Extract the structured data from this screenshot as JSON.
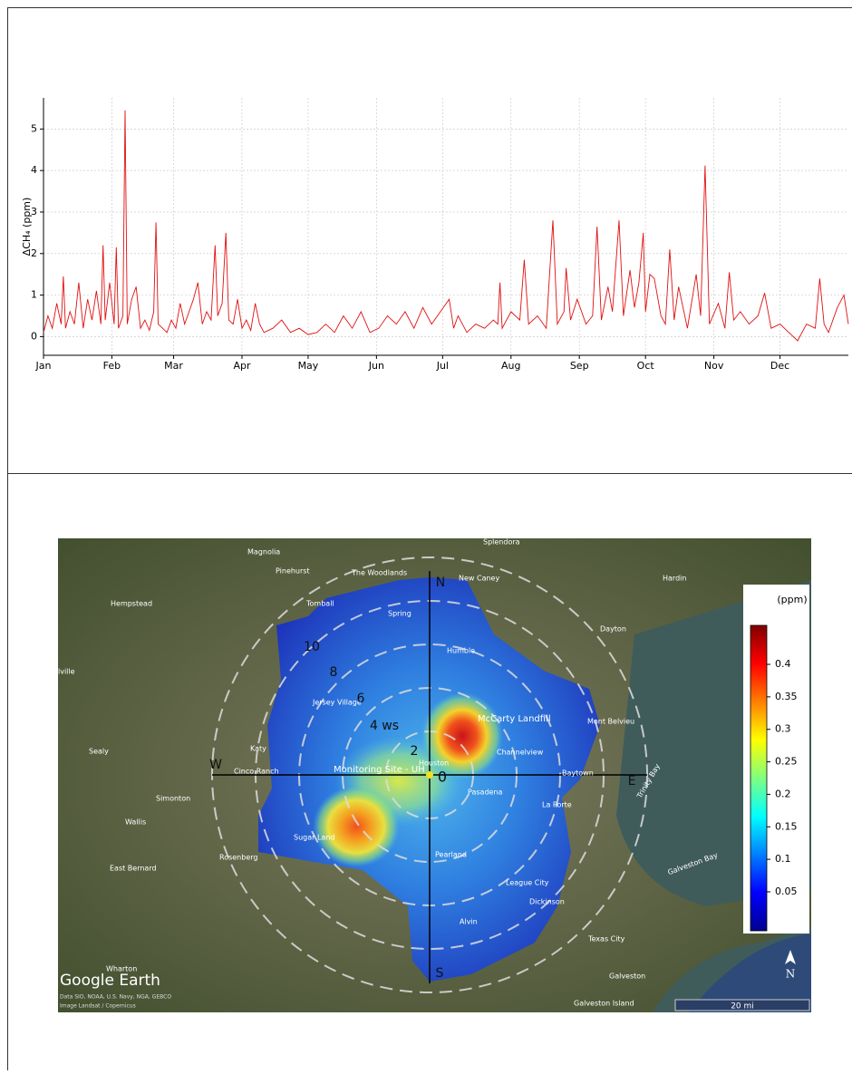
{
  "chart_data": {
    "type": "line",
    "ylabel": "ΔCH₄ (ppm)",
    "color": "#e01010",
    "grid": true,
    "xlim": [
      0,
      365
    ],
    "ylim": [
      -0.45,
      5.75
    ],
    "xticks": [
      {
        "value": 0,
        "label": "Jan"
      },
      {
        "value": 31,
        "label": "Feb"
      },
      {
        "value": 59,
        "label": "Mar"
      },
      {
        "value": 90,
        "label": "Apr"
      },
      {
        "value": 120,
        "label": "May"
      },
      {
        "value": 151,
        "label": "Jun"
      },
      {
        "value": 181,
        "label": "Jul"
      },
      {
        "value": 212,
        "label": "Aug"
      },
      {
        "value": 243,
        "label": "Sep"
      },
      {
        "value": 273,
        "label": "Oct"
      },
      {
        "value": 304,
        "label": "Nov"
      },
      {
        "value": 334,
        "label": "Dec"
      }
    ],
    "yticks": [
      0,
      1,
      2,
      3,
      4,
      5
    ],
    "x": [
      0,
      2,
      4,
      6,
      8,
      9,
      10,
      12,
      14,
      16,
      18,
      20,
      22,
      24,
      26,
      27,
      28,
      30,
      32,
      33,
      34,
      36,
      37,
      38,
      40,
      42,
      44,
      46,
      48,
      50,
      51,
      52,
      54,
      56,
      58,
      60,
      62,
      64,
      66,
      68,
      70,
      72,
      74,
      76,
      77.8,
      79,
      81,
      82.7,
      84,
      86,
      88,
      90,
      92,
      94,
      96,
      98,
      100,
      104,
      108,
      112,
      116,
      120,
      124,
      128,
      132,
      136,
      140,
      144,
      148,
      152,
      156,
      160,
      164,
      168,
      172,
      176,
      180,
      184,
      186,
      188,
      192,
      196,
      200,
      204,
      206,
      207,
      208,
      212,
      216,
      218,
      220,
      224,
      228,
      231,
      233,
      236,
      237,
      239,
      242,
      246,
      249,
      251,
      253,
      256,
      258,
      261,
      263,
      266,
      268,
      270,
      272,
      273,
      275,
      277,
      280,
      282,
      284,
      286,
      288,
      292,
      296,
      298,
      300,
      302,
      306,
      309,
      311,
      313,
      316,
      320,
      324,
      327,
      330,
      334,
      338,
      342,
      346,
      350,
      352,
      354,
      356,
      360,
      363,
      365
    ],
    "values": [
      0.1,
      0.5,
      0.2,
      0.8,
      0.3,
      1.45,
      0.2,
      0.6,
      0.3,
      1.3,
      0.2,
      0.9,
      0.4,
      1.1,
      0.3,
      2.2,
      0.4,
      1.3,
      0.3,
      2.15,
      0.2,
      0.5,
      5.45,
      0.3,
      0.9,
      1.2,
      0.2,
      0.4,
      0.15,
      0.6,
      2.75,
      0.3,
      0.2,
      0.1,
      0.4,
      0.2,
      0.8,
      0.3,
      0.6,
      0.9,
      1.3,
      0.3,
      0.6,
      0.4,
      2.2,
      0.5,
      0.8,
      2.5,
      0.4,
      0.3,
      0.9,
      0.2,
      0.4,
      0.15,
      0.8,
      0.3,
      0.1,
      0.2,
      0.4,
      0.1,
      0.2,
      0.05,
      0.1,
      0.3,
      0.1,
      0.5,
      0.2,
      0.6,
      0.1,
      0.2,
      0.5,
      0.3,
      0.6,
      0.2,
      0.7,
      0.3,
      0.6,
      0.9,
      0.2,
      0.5,
      0.1,
      0.3,
      0.2,
      0.4,
      0.3,
      1.3,
      0.2,
      0.6,
      0.4,
      1.85,
      0.3,
      0.5,
      0.2,
      2.8,
      0.3,
      0.6,
      1.65,
      0.4,
      0.9,
      0.3,
      0.5,
      2.65,
      0.4,
      1.2,
      0.6,
      2.8,
      0.5,
      1.6,
      0.7,
      1.3,
      2.5,
      0.6,
      1.5,
      1.4,
      0.5,
      0.3,
      2.1,
      0.4,
      1.2,
      0.2,
      1.5,
      0.5,
      4.12,
      0.3,
      0.8,
      0.2,
      1.55,
      0.4,
      0.6,
      0.3,
      0.5,
      1.05,
      0.2,
      0.3,
      0.1,
      -0.1,
      0.3,
      0.2,
      1.4,
      0.3,
      0.1,
      0.7,
      1.0,
      0.3
    ]
  },
  "map": {
    "places": [
      "Splendora",
      "Magnolia",
      "Pinehurst",
      "The Woodlands",
      "New Caney",
      "Hardin",
      "Hempstead",
      "Tomball",
      "Spring",
      "Dayton",
      "Humble",
      "lville",
      "Jersey Village",
      "McCarty Landfill",
      "Mont Belvieu",
      "Sealy",
      "Katy",
      "Channelview",
      "Houston",
      "Cinco Ranch",
      "Monitoring Site - UH",
      "Baytown",
      "Pasadena",
      "Simonton",
      "La Porte",
      "Trinity Bay",
      "Wallis",
      "Sugar Land",
      "Pearland",
      "Rosenberg",
      "East Bernard",
      "League City",
      "Galveston Bay",
      "Dickinson",
      "Alvin",
      "Texas City",
      "Wharton",
      "Galveston",
      "Galveston Island"
    ],
    "compass": [
      "N",
      "E",
      "S",
      "W"
    ],
    "rings": [
      "0",
      "2",
      "4 ws",
      "6",
      "8",
      "10"
    ],
    "colorbar": {
      "label": "(ppm)",
      "lim": [
        -0.01,
        0.46
      ],
      "ticks": [
        0.05,
        0.1,
        0.15,
        0.2,
        0.25,
        0.3,
        0.35,
        0.4
      ]
    },
    "scale": "20 mi",
    "logo": "Google Earth",
    "credits": [
      "Data SIO, NOAA, U.S. Navy, NGA, GEBCO",
      "Image Landsat / Copernicus"
    ],
    "north": "N"
  }
}
